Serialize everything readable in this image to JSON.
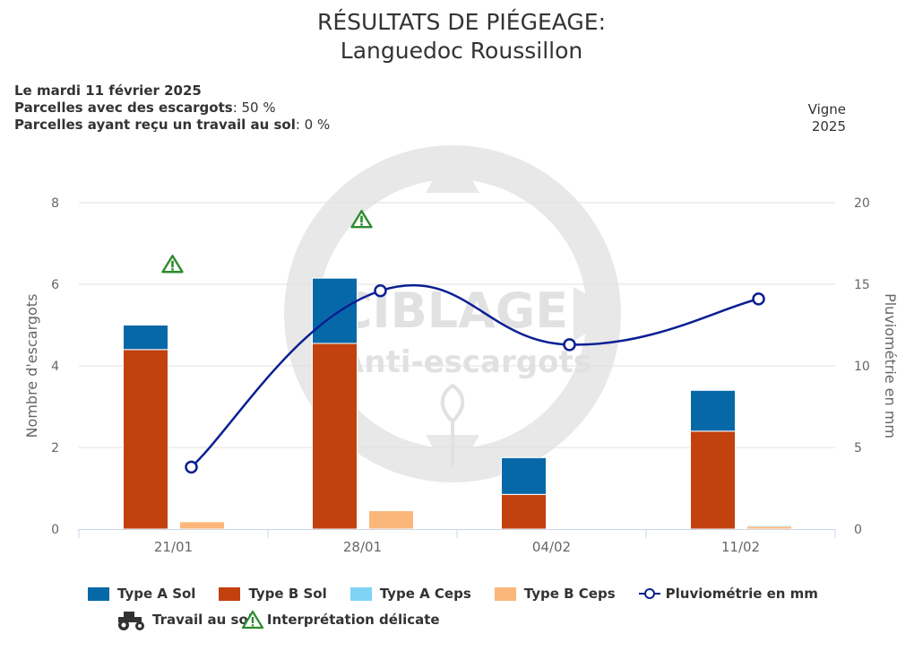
{
  "title_line1": "RÉSULTATS DE PIÉGEAGE:",
  "title_line2": "Languedoc Roussillon",
  "info": {
    "date_label": "Le mardi 11 février 2025",
    "snails_label": "Parcelles avec des escargots",
    "snails_value": ": 50 %",
    "soil_label": "Parcelles ayant reçu un travail au sol",
    "soil_value": ": 0 %",
    "crop": "Vigne",
    "year": "2025"
  },
  "watermark": {
    "line1": "CIBLAGE",
    "line2": "Anti-escargots"
  },
  "colors": {
    "type_a_sol": "#0768a8",
    "type_b_sol": "#c2410e",
    "type_a_ceps": "#7fd3f5",
    "type_b_ceps": "#fbb77a",
    "pluvio": "#0a1f93",
    "warning": "#2e8b2e"
  },
  "chart_data": {
    "type": "bar",
    "categories": [
      "21/01",
      "28/01",
      "04/02",
      "11/02"
    ],
    "ylabel": "Nombre d'escargots",
    "y2label": "Pluviométrie en mm",
    "ylim": [
      0,
      8
    ],
    "y2lim": [
      0,
      20
    ],
    "yticks": [
      "0",
      "2",
      "4",
      "6",
      "8"
    ],
    "y2ticks": [
      "0",
      "5",
      "10",
      "15",
      "20"
    ],
    "series": [
      {
        "name": "Type A Sol",
        "stack": "sol",
        "values": [
          0.6,
          1.6,
          0.9,
          1.0
        ]
      },
      {
        "name": "Type B Sol",
        "stack": "sol",
        "values": [
          4.4,
          4.55,
          0.85,
          2.4
        ]
      },
      {
        "name": "Type A Ceps",
        "stack": "ceps",
        "values": [
          0,
          0,
          0,
          0.03
        ]
      },
      {
        "name": "Type B Ceps",
        "stack": "ceps",
        "values": [
          0.18,
          0.45,
          0,
          0.07
        ]
      },
      {
        "name": "Pluviométrie en mm",
        "type": "line",
        "axis": "right",
        "values": [
          3.8,
          14.6,
          11.3,
          14.1
        ]
      }
    ],
    "warnings": [
      {
        "category": "21/01",
        "y": 6.5
      },
      {
        "category": "28/01",
        "y": 7.6
      }
    ],
    "legend": [
      "Type A Sol",
      "Type B Sol",
      "Type A Ceps",
      "Type B Ceps",
      "Pluviométrie en mm",
      "Travail au sol",
      "Interprétation délicate"
    ]
  }
}
